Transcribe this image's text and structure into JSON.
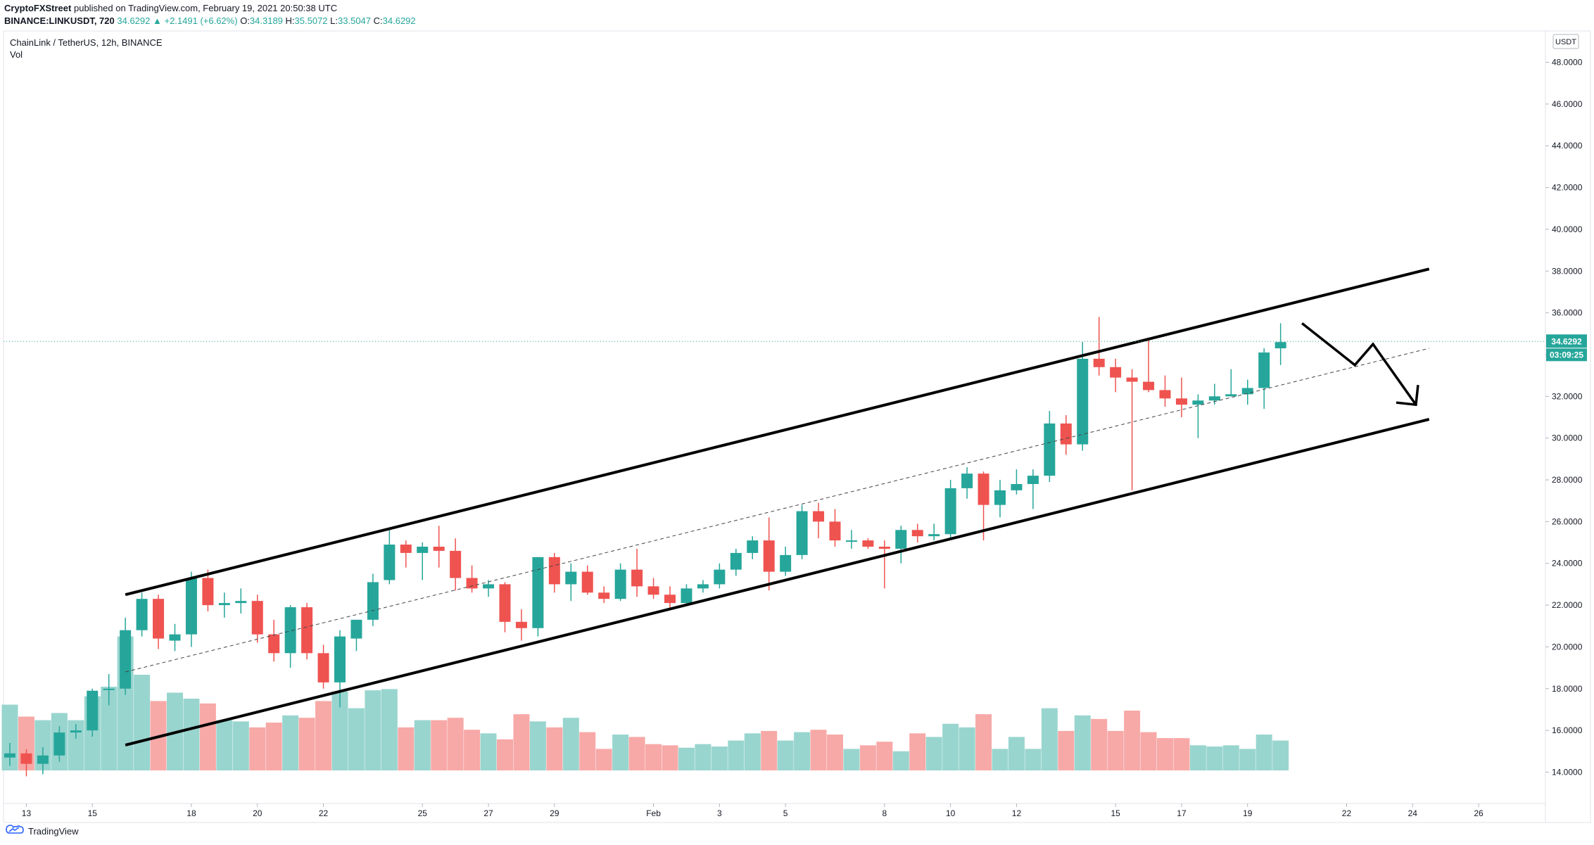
{
  "header": {
    "author": "CryptoFXStreet",
    "published_text": "published on TradingView.com, February 19, 2021 20:50:38 UTC",
    "symbol": "BINANCE:LINKUSDT, 720",
    "last": "34.6292",
    "change": "▲ +2.1491 (+6.62%)",
    "o_label": "O:",
    "o_val": "34.3189",
    "h_label": "H:",
    "h_val": "35.5072",
    "l_label": "L:",
    "l_val": "33.5047",
    "c_label": "C:",
    "c_val": "34.6292"
  },
  "legend": {
    "title": "ChainLink / TetherUS, 12h, BINANCE",
    "volume": "Vol"
  },
  "footer": {
    "brand": "TradingView"
  },
  "colors": {
    "up": "#26a69a",
    "down": "#ef5350",
    "vol_up": "#99d5cf",
    "vol_down": "#f7a9a7",
    "price_line": "#26a69a"
  },
  "chart_data": {
    "type": "candlestick",
    "title": "ChainLink / TetherUS, 12h, BINANCE",
    "currency": "USDT",
    "ylim": [
      12.5,
      49.5
    ],
    "y_ticks": [
      "14.0000",
      "16.0000",
      "18.0000",
      "20.0000",
      "22.0000",
      "24.0000",
      "26.0000",
      "28.0000",
      "30.0000",
      "32.0000",
      "34.0000",
      "36.0000",
      "38.0000",
      "40.0000",
      "42.0000",
      "44.0000",
      "46.0000",
      "48.0000"
    ],
    "x_ticks": [
      {
        "label": "13",
        "date": "2021-01-13"
      },
      {
        "label": "15",
        "date": "2021-01-15"
      },
      {
        "label": "18",
        "date": "2021-01-18"
      },
      {
        "label": "20",
        "date": "2021-01-20"
      },
      {
        "label": "22",
        "date": "2021-01-22"
      },
      {
        "label": "25",
        "date": "2021-01-25"
      },
      {
        "label": "27",
        "date": "2021-01-27"
      },
      {
        "label": "29",
        "date": "2021-01-29"
      },
      {
        "label": "Feb",
        "date": "2021-02-01"
      },
      {
        "label": "3",
        "date": "2021-02-03"
      },
      {
        "label": "5",
        "date": "2021-02-05"
      },
      {
        "label": "8",
        "date": "2021-02-08"
      },
      {
        "label": "10",
        "date": "2021-02-10"
      },
      {
        "label": "12",
        "date": "2021-02-12"
      },
      {
        "label": "15",
        "date": "2021-02-15"
      },
      {
        "label": "17",
        "date": "2021-02-17"
      },
      {
        "label": "19",
        "date": "2021-02-19"
      },
      {
        "label": "22",
        "date": "2021-02-22"
      },
      {
        "label": "24",
        "date": "2021-02-24"
      },
      {
        "label": "26",
        "date": "2021-02-26"
      }
    ],
    "candles": [
      {
        "o": 14.7,
        "h": 15.4,
        "l": 14.3,
        "c": 14.9,
        "v": 0.55
      },
      {
        "o": 14.9,
        "h": 15.1,
        "l": 13.8,
        "c": 14.4,
        "v": 0.45
      },
      {
        "o": 14.4,
        "h": 15.2,
        "l": 13.9,
        "c": 14.8,
        "v": 0.42
      },
      {
        "o": 14.8,
        "h": 16.2,
        "l": 14.5,
        "c": 15.9,
        "v": 0.48
      },
      {
        "o": 15.9,
        "h": 16.3,
        "l": 15.6,
        "c": 16.0,
        "v": 0.42
      },
      {
        "o": 16.0,
        "h": 18.0,
        "l": 15.7,
        "c": 17.9,
        "v": 0.62
      },
      {
        "o": 18.0,
        "h": 18.7,
        "l": 17.2,
        "c": 18.0,
        "v": 0.7
      },
      {
        "o": 18.0,
        "h": 21.4,
        "l": 17.7,
        "c": 20.8,
        "v": 1.12
      },
      {
        "o": 20.8,
        "h": 22.6,
        "l": 20.5,
        "c": 22.3,
        "v": 0.8
      },
      {
        "o": 22.3,
        "h": 22.5,
        "l": 19.9,
        "c": 20.4,
        "v": 0.58
      },
      {
        "o": 20.3,
        "h": 21.1,
        "l": 19.8,
        "c": 20.6,
        "v": 0.65
      },
      {
        "o": 20.6,
        "h": 23.6,
        "l": 20.0,
        "c": 23.3,
        "v": 0.6
      },
      {
        "o": 23.3,
        "h": 23.7,
        "l": 21.7,
        "c": 22.0,
        "v": 0.56
      },
      {
        "o": 22.0,
        "h": 22.6,
        "l": 21.4,
        "c": 22.1,
        "v": 0.42
      },
      {
        "o": 22.1,
        "h": 22.8,
        "l": 21.6,
        "c": 22.2,
        "v": 0.41
      },
      {
        "o": 22.2,
        "h": 22.5,
        "l": 20.2,
        "c": 20.6,
        "v": 0.36
      },
      {
        "o": 20.6,
        "h": 21.3,
        "l": 19.3,
        "c": 19.7,
        "v": 0.4
      },
      {
        "o": 19.7,
        "h": 22.0,
        "l": 19.0,
        "c": 21.9,
        "v": 0.46
      },
      {
        "o": 21.9,
        "h": 22.1,
        "l": 19.4,
        "c": 19.7,
        "v": 0.44
      },
      {
        "o": 19.7,
        "h": 20.1,
        "l": 18.0,
        "c": 18.3,
        "v": 0.58
      },
      {
        "o": 18.3,
        "h": 20.8,
        "l": 17.1,
        "c": 20.5,
        "v": 0.66
      },
      {
        "o": 20.4,
        "h": 21.3,
        "l": 19.8,
        "c": 21.3,
        "v": 0.52
      },
      {
        "o": 21.3,
        "h": 23.5,
        "l": 21.0,
        "c": 23.1,
        "v": 0.67
      },
      {
        "o": 23.2,
        "h": 25.6,
        "l": 23.0,
        "c": 24.9,
        "v": 0.68
      },
      {
        "o": 24.9,
        "h": 25.1,
        "l": 23.8,
        "c": 24.5,
        "v": 0.36
      },
      {
        "o": 24.5,
        "h": 25.0,
        "l": 23.2,
        "c": 24.8,
        "v": 0.42
      },
      {
        "o": 24.8,
        "h": 25.8,
        "l": 23.8,
        "c": 24.6,
        "v": 0.42
      },
      {
        "o": 24.6,
        "h": 25.2,
        "l": 22.7,
        "c": 23.3,
        "v": 0.44
      },
      {
        "o": 23.3,
        "h": 23.9,
        "l": 22.6,
        "c": 22.8,
        "v": 0.34
      },
      {
        "o": 22.8,
        "h": 23.2,
        "l": 22.4,
        "c": 23.0,
        "v": 0.31
      },
      {
        "o": 23.0,
        "h": 23.1,
        "l": 20.7,
        "c": 21.2,
        "v": 0.26
      },
      {
        "o": 21.2,
        "h": 21.8,
        "l": 20.3,
        "c": 20.9,
        "v": 0.47
      },
      {
        "o": 20.9,
        "h": 24.3,
        "l": 20.5,
        "c": 24.3,
        "v": 0.41
      },
      {
        "o": 24.3,
        "h": 24.5,
        "l": 22.6,
        "c": 23.0,
        "v": 0.36
      },
      {
        "o": 23.0,
        "h": 24.0,
        "l": 22.2,
        "c": 23.6,
        "v": 0.44
      },
      {
        "o": 23.6,
        "h": 23.9,
        "l": 22.5,
        "c": 22.6,
        "v": 0.32
      },
      {
        "o": 22.6,
        "h": 22.9,
        "l": 22.1,
        "c": 22.3,
        "v": 0.18
      },
      {
        "o": 22.3,
        "h": 24.0,
        "l": 22.2,
        "c": 23.7,
        "v": 0.3
      },
      {
        "o": 23.7,
        "h": 24.7,
        "l": 22.4,
        "c": 22.9,
        "v": 0.28
      },
      {
        "o": 22.9,
        "h": 23.3,
        "l": 22.3,
        "c": 22.5,
        "v": 0.22
      },
      {
        "o": 22.5,
        "h": 22.9,
        "l": 21.8,
        "c": 22.1,
        "v": 0.21
      },
      {
        "o": 22.1,
        "h": 23.0,
        "l": 22.0,
        "c": 22.8,
        "v": 0.19
      },
      {
        "o": 22.8,
        "h": 23.2,
        "l": 22.6,
        "c": 23.0,
        "v": 0.22
      },
      {
        "o": 23.0,
        "h": 24.0,
        "l": 22.8,
        "c": 23.7,
        "v": 0.2
      },
      {
        "o": 23.7,
        "h": 24.7,
        "l": 23.4,
        "c": 24.5,
        "v": 0.25
      },
      {
        "o": 24.5,
        "h": 25.3,
        "l": 24.2,
        "c": 25.1,
        "v": 0.31
      },
      {
        "o": 25.1,
        "h": 26.2,
        "l": 22.7,
        "c": 23.6,
        "v": 0.33
      },
      {
        "o": 23.6,
        "h": 24.8,
        "l": 23.4,
        "c": 24.4,
        "v": 0.25
      },
      {
        "o": 24.4,
        "h": 26.8,
        "l": 24.2,
        "c": 26.5,
        "v": 0.32
      },
      {
        "o": 26.5,
        "h": 26.9,
        "l": 25.2,
        "c": 26.0,
        "v": 0.34
      },
      {
        "o": 26.0,
        "h": 26.6,
        "l": 24.8,
        "c": 25.1,
        "v": 0.3
      },
      {
        "o": 25.1,
        "h": 25.6,
        "l": 24.7,
        "c": 25.1,
        "v": 0.18
      },
      {
        "o": 25.1,
        "h": 25.2,
        "l": 24.7,
        "c": 24.8,
        "v": 0.21
      },
      {
        "o": 24.8,
        "h": 25.1,
        "l": 22.8,
        "c": 24.7,
        "v": 0.24
      },
      {
        "o": 24.7,
        "h": 25.8,
        "l": 24.0,
        "c": 25.6,
        "v": 0.16
      },
      {
        "o": 25.6,
        "h": 25.9,
        "l": 25.0,
        "c": 25.3,
        "v": 0.31
      },
      {
        "o": 25.3,
        "h": 25.9,
        "l": 25.1,
        "c": 25.4,
        "v": 0.28
      },
      {
        "o": 25.4,
        "h": 28.0,
        "l": 25.2,
        "c": 27.6,
        "v": 0.39
      },
      {
        "o": 27.6,
        "h": 28.6,
        "l": 27.1,
        "c": 28.3,
        "v": 0.36
      },
      {
        "o": 28.3,
        "h": 28.4,
        "l": 25.1,
        "c": 26.8,
        "v": 0.47
      },
      {
        "o": 26.8,
        "h": 28.0,
        "l": 26.2,
        "c": 27.5,
        "v": 0.18
      },
      {
        "o": 27.5,
        "h": 28.5,
        "l": 27.3,
        "c": 27.8,
        "v": 0.28
      },
      {
        "o": 27.8,
        "h": 28.5,
        "l": 26.6,
        "c": 28.2,
        "v": 0.18
      },
      {
        "o": 28.2,
        "h": 31.3,
        "l": 27.9,
        "c": 30.7,
        "v": 0.52
      },
      {
        "o": 30.7,
        "h": 31.1,
        "l": 29.2,
        "c": 29.7,
        "v": 0.33
      },
      {
        "o": 29.7,
        "h": 34.6,
        "l": 29.4,
        "c": 33.8,
        "v": 0.46
      },
      {
        "o": 33.8,
        "h": 35.8,
        "l": 33.0,
        "c": 33.4,
        "v": 0.43
      },
      {
        "o": 33.4,
        "h": 33.8,
        "l": 32.2,
        "c": 32.9,
        "v": 0.33
      },
      {
        "o": 32.9,
        "h": 33.3,
        "l": 27.5,
        "c": 32.7,
        "v": 0.5
      },
      {
        "o": 32.7,
        "h": 34.7,
        "l": 32.2,
        "c": 32.3,
        "v": 0.32
      },
      {
        "o": 32.3,
        "h": 33.0,
        "l": 31.5,
        "c": 31.9,
        "v": 0.27
      },
      {
        "o": 31.9,
        "h": 32.9,
        "l": 31.0,
        "c": 31.6,
        "v": 0.27
      },
      {
        "o": 31.6,
        "h": 32.1,
        "l": 30.0,
        "c": 31.8,
        "v": 0.21
      },
      {
        "o": 31.8,
        "h": 32.6,
        "l": 31.6,
        "c": 32.0,
        "v": 0.2
      },
      {
        "o": 32.0,
        "h": 33.3,
        "l": 32.0,
        "c": 32.1,
        "v": 0.21
      },
      {
        "o": 32.1,
        "h": 32.8,
        "l": 31.6,
        "c": 32.4,
        "v": 0.18
      },
      {
        "o": 32.4,
        "h": 34.3,
        "l": 31.4,
        "c": 34.1,
        "v": 0.3
      },
      {
        "o": 34.3,
        "h": 35.5,
        "l": 33.5,
        "c": 34.6,
        "v": 0.25
      }
    ],
    "last_price_label": "34.6292",
    "countdown_label": "03:09:25",
    "channel": {
      "upper": [
        {
          "x_index": 7,
          "y": 22.5
        },
        {
          "x_index": 86,
          "y": 38.1
        }
      ],
      "lower": [
        {
          "x_index": 7,
          "y": 15.3
        },
        {
          "x_index": 86,
          "y": 30.9
        }
      ],
      "middle": [
        {
          "x_index": 7,
          "y": 18.8
        },
        {
          "x_index": 86,
          "y": 34.3
        }
      ]
    },
    "forecast_arrow": [
      {
        "x_index": 78.3,
        "y": 35.5
      },
      {
        "x_index": 81.5,
        "y": 33.5
      },
      {
        "x_index": 82.6,
        "y": 34.5
      },
      {
        "x_index": 85.2,
        "y": 31.6
      }
    ]
  }
}
